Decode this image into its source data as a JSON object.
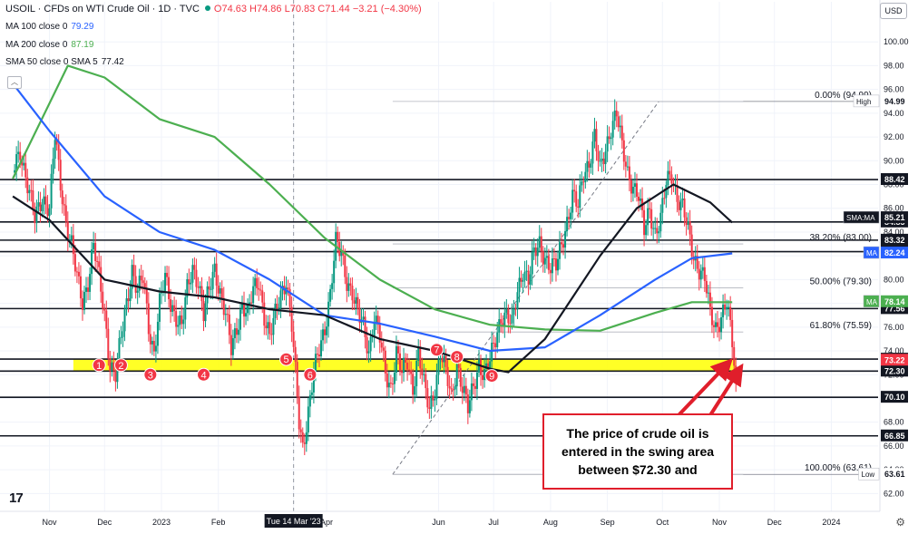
{
  "header": {
    "symbol_line": "USOIL · CFDs on WTI Crude Oil · 1D · TVC",
    "ohlc": "O74.63 H74.86 L70.83 C71.44 −3.21 (−4.30%)",
    "indicators": [
      {
        "label": "MA 100 close 0",
        "value": "79.29",
        "color": "#2962ff"
      },
      {
        "label": "MA 200 close 0",
        "value": "87.19",
        "color": "#4caf50"
      },
      {
        "label": "SMA 50 close 0 SMA 5",
        "value": "77.42",
        "color": "#131722"
      }
    ],
    "currency": "USD"
  },
  "colors": {
    "up": "#089981",
    "down": "#f23645",
    "ma100": "#2962ff",
    "ma200": "#4caf50",
    "sma50": "#131722",
    "zone": "#ffff00",
    "annotation": "#e01e2b"
  },
  "callout": {
    "lines": [
      "The price of crude oil is",
      "entered in the swing area",
      "between $72.30 and"
    ]
  },
  "chart_data": {
    "type": "candlestick",
    "title": "USOIL · CFDs on WTI Crude Oil · 1D · TVC",
    "ylim": [
      60.5,
      102
    ],
    "y_ticks": [
      62,
      64,
      66,
      68,
      70,
      72,
      74,
      76,
      78,
      80,
      82,
      84,
      86,
      88,
      90,
      92,
      94,
      96,
      98,
      100
    ],
    "y_tick_labels": [
      "62.00",
      "64.00",
      "66.00",
      "68.00",
      "70.00",
      "72.00",
      "74.00",
      "76.00",
      "78.00",
      "80.00",
      "82.00",
      "84.00",
      "86.00",
      "88.00",
      "90.00",
      "92.00",
      "94.00",
      "96.00",
      "98.00",
      "100.00"
    ],
    "x_ticks": [
      {
        "label": "Nov",
        "day": 0
      },
      {
        "label": "Dec",
        "day": 30
      },
      {
        "label": "2023",
        "day": 61
      },
      {
        "label": "Feb",
        "day": 92
      },
      {
        "label": "Tue 14 Mar '23",
        "day": 133
      },
      {
        "label": "Apr",
        "day": 151
      },
      {
        "label": "Jun",
        "day": 212
      },
      {
        "label": "Jul",
        "day": 242
      },
      {
        "label": "Aug",
        "day": 273
      },
      {
        "label": "Sep",
        "day": 304
      },
      {
        "label": "Oct",
        "day": 334
      },
      {
        "label": "Nov",
        "day": 365
      },
      {
        "label": "Dec",
        "day": 395
      },
      {
        "label": "2024",
        "day": 426
      }
    ],
    "price_path": [
      [
        -20,
        89
      ],
      [
        -16,
        91
      ],
      [
        -12,
        88
      ],
      [
        -8,
        85
      ],
      [
        -4,
        87
      ],
      [
        0,
        86
      ],
      [
        3,
        92
      ],
      [
        6,
        88
      ],
      [
        9,
        85
      ],
      [
        12,
        83
      ],
      [
        15,
        80
      ],
      [
        18,
        78
      ],
      [
        21,
        80
      ],
      [
        24,
        83
      ],
      [
        27,
        80
      ],
      [
        30,
        77
      ],
      [
        33,
        73
      ],
      [
        36,
        72
      ],
      [
        39,
        75
      ],
      [
        42,
        78
      ],
      [
        45,
        81
      ],
      [
        48,
        79
      ],
      [
        51,
        80
      ],
      [
        54,
        76
      ],
      [
        57,
        74
      ],
      [
        60,
        78
      ],
      [
        63,
        80
      ],
      [
        66,
        78
      ],
      [
        69,
        77
      ],
      [
        72,
        76
      ],
      [
        75,
        79
      ],
      [
        78,
        81
      ],
      [
        81,
        80
      ],
      [
        84,
        77
      ],
      [
        87,
        79
      ],
      [
        90,
        81
      ],
      [
        93,
        79
      ],
      [
        96,
        77
      ],
      [
        99,
        74
      ],
      [
        102,
        76
      ],
      [
        105,
        78
      ],
      [
        108,
        77
      ],
      [
        111,
        79
      ],
      [
        114,
        80
      ],
      [
        117,
        77
      ],
      [
        120,
        75
      ],
      [
        123,
        77
      ],
      [
        126,
        79
      ],
      [
        129,
        80
      ],
      [
        132,
        76
      ],
      [
        134,
        72
      ],
      [
        136,
        68
      ],
      [
        138,
        66
      ],
      [
        141,
        69
      ],
      [
        144,
        72
      ],
      [
        147,
        74
      ],
      [
        150,
        76
      ],
      [
        153,
        79
      ],
      [
        156,
        83
      ],
      [
        159,
        82
      ],
      [
        162,
        80
      ],
      [
        165,
        79
      ],
      [
        168,
        77
      ],
      [
        171,
        76
      ],
      [
        174,
        74
      ],
      [
        177,
        77
      ],
      [
        180,
        75
      ],
      [
        183,
        72
      ],
      [
        186,
        71
      ],
      [
        189,
        74
      ],
      [
        192,
        72
      ],
      [
        195,
        73
      ],
      [
        198,
        71
      ],
      [
        201,
        74
      ],
      [
        204,
        71
      ],
      [
        207,
        69
      ],
      [
        210,
        71
      ],
      [
        213,
        74
      ],
      [
        216,
        72
      ],
      [
        219,
        70
      ],
      [
        222,
        73
      ],
      [
        225,
        71
      ],
      [
        228,
        69
      ],
      [
        231,
        71
      ],
      [
        234,
        73
      ],
      [
        237,
        72
      ],
      [
        240,
        73
      ],
      [
        243,
        75
      ],
      [
        246,
        77
      ],
      [
        249,
        77
      ],
      [
        252,
        76
      ],
      [
        255,
        79
      ],
      [
        258,
        81
      ],
      [
        261,
        80
      ],
      [
        264,
        82
      ],
      [
        267,
        83
      ],
      [
        270,
        82
      ],
      [
        273,
        81
      ],
      [
        276,
        81
      ],
      [
        279,
        83
      ],
      [
        282,
        85
      ],
      [
        285,
        87
      ],
      [
        288,
        86
      ],
      [
        291,
        89
      ],
      [
        294,
        90
      ],
      [
        297,
        92
      ],
      [
        300,
        89
      ],
      [
        303,
        91
      ],
      [
        306,
        93
      ],
      [
        309,
        94
      ],
      [
        312,
        91
      ],
      [
        315,
        89
      ],
      [
        318,
        88
      ],
      [
        321,
        87
      ],
      [
        324,
        84
      ],
      [
        327,
        86
      ],
      [
        330,
        84
      ],
      [
        333,
        85
      ],
      [
        336,
        88
      ],
      [
        339,
        89
      ],
      [
        342,
        87
      ],
      [
        345,
        86
      ],
      [
        348,
        84
      ],
      [
        351,
        82
      ],
      [
        354,
        81
      ],
      [
        357,
        80
      ],
      [
        360,
        77
      ],
      [
        363,
        76
      ],
      [
        366,
        77
      ],
      [
        369,
        78
      ],
      [
        372,
        74.6
      ],
      [
        374,
        71.4
      ]
    ],
    "series": [
      {
        "name": "MA 200",
        "path": [
          [
            -20,
            88.5
          ],
          [
            10,
            98
          ],
          [
            30,
            97
          ],
          [
            60,
            93.5
          ],
          [
            90,
            92
          ],
          [
            120,
            88
          ],
          [
            150,
            83.5
          ],
          [
            180,
            80
          ],
          [
            210,
            77.5
          ],
          [
            240,
            76.2
          ],
          [
            270,
            75.8
          ],
          [
            300,
            75.7
          ],
          [
            330,
            77.2
          ],
          [
            350,
            78.1
          ],
          [
            372,
            78.1
          ]
        ]
      },
      {
        "name": "MA 100",
        "path": [
          [
            -20,
            96.5
          ],
          [
            0,
            92.5
          ],
          [
            30,
            87
          ],
          [
            60,
            84
          ],
          [
            90,
            82.5
          ],
          [
            120,
            80
          ],
          [
            150,
            77
          ],
          [
            180,
            76.3
          ],
          [
            210,
            75.2
          ],
          [
            240,
            74
          ],
          [
            270,
            74.3
          ],
          [
            300,
            77
          ],
          [
            330,
            80
          ],
          [
            350,
            81.8
          ],
          [
            372,
            82.2
          ]
        ]
      },
      {
        "name": "SMA 50",
        "path": [
          [
            -20,
            87
          ],
          [
            0,
            85
          ],
          [
            30,
            80
          ],
          [
            60,
            79
          ],
          [
            90,
            78.5
          ],
          [
            120,
            77.5
          ],
          [
            150,
            77
          ],
          [
            180,
            75
          ],
          [
            195,
            74.5
          ],
          [
            210,
            74
          ],
          [
            240,
            72.5
          ],
          [
            250,
            72.2
          ],
          [
            270,
            75
          ],
          [
            300,
            82
          ],
          [
            320,
            86
          ],
          [
            340,
            88
          ],
          [
            360,
            86.5
          ],
          [
            372,
            84.8
          ]
        ]
      }
    ],
    "horizontal_levels": [
      {
        "value": 94.99,
        "label": "94.99",
        "tag": "High"
      },
      {
        "value": 88.42,
        "label": "88.42"
      },
      {
        "value": 84.85,
        "label": "84.85"
      },
      {
        "value": 83.32,
        "label": "83.32"
      },
      {
        "value": 82.35,
        "label": "82.35"
      },
      {
        "value": 77.56,
        "label": "77.56"
      },
      {
        "value": 73.31,
        "label": "73.31"
      },
      {
        "value": 72.3,
        "label": "72.30"
      },
      {
        "value": 70.1,
        "label": "70.10"
      },
      {
        "value": 66.85,
        "label": "66.85"
      },
      {
        "value": 63.61,
        "label": "63.61",
        "tag": "Low"
      }
    ],
    "price_tags": [
      {
        "value": 85.21,
        "label": "85.21",
        "tag": "SMA:MA",
        "color": "#131722"
      },
      {
        "value": 82.24,
        "label": "82.24",
        "tag": "MA",
        "color": "#2962ff"
      },
      {
        "value": 78.14,
        "label": "78.14",
        "tag": "MA",
        "color": "#4caf50"
      },
      {
        "value": 73.22,
        "label": "73.22",
        "color": "#f23645"
      }
    ],
    "fibonacci": {
      "from": {
        "day": 187,
        "value": 63.61
      },
      "to": {
        "day": 332,
        "value": 94.99
      },
      "levels": [
        {
          "value": 94.99,
          "label": "0.00% (94.99)"
        },
        {
          "value": 83.0,
          "label": "38.20% (83.00)"
        },
        {
          "value": 79.3,
          "label": "50.00% (79.30)"
        },
        {
          "value": 75.59,
          "label": "61.80% (75.59)"
        },
        {
          "value": 63.61,
          "label": "100.00% (63.61)"
        }
      ]
    },
    "swing_zone": {
      "from": 72.3,
      "to": 73.31
    },
    "markers": [
      {
        "label": "1",
        "day": 27,
        "value": 72.8
      },
      {
        "label": "2",
        "day": 39,
        "value": 72.8
      },
      {
        "label": "3",
        "day": 55,
        "value": 72.0
      },
      {
        "label": "4",
        "day": 84,
        "value": 72.0
      },
      {
        "label": "5",
        "day": 129,
        "value": 73.3
      },
      {
        "label": "6",
        "day": 142,
        "value": 72.0
      },
      {
        "label": "7",
        "day": 211,
        "value": 74.1
      },
      {
        "label": "8",
        "day": 222,
        "value": 73.5
      },
      {
        "label": "9",
        "day": 241,
        "value": 71.9
      }
    ]
  }
}
